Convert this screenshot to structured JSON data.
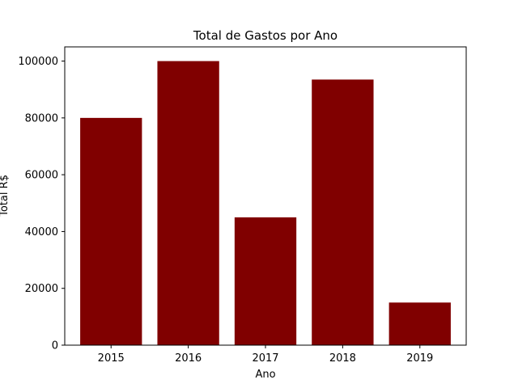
{
  "chart_data": {
    "type": "bar",
    "title": "Total de Gastos por Ano",
    "xlabel": "Ano",
    "ylabel": "Total R$",
    "categories": [
      "2015",
      "2016",
      "2017",
      "2018",
      "2019"
    ],
    "values": [
      80000,
      100000,
      45000,
      93500,
      15000
    ],
    "ylim": [
      0,
      105000
    ],
    "yticks": [
      0,
      20000,
      40000,
      60000,
      80000,
      100000
    ],
    "bar_color": "#800000",
    "grid": false,
    "legend": false
  }
}
